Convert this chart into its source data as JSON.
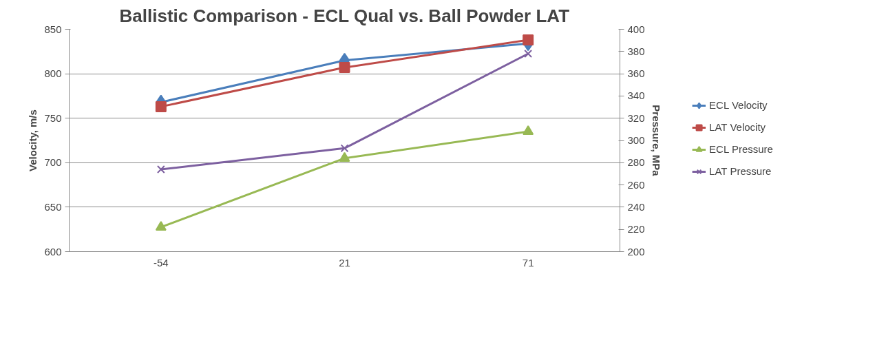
{
  "chart_data": {
    "type": "line",
    "title": "Ballistic Comparison - ECL Qual vs. Ball Powder LAT",
    "categories": [
      "-54",
      "21",
      "71"
    ],
    "ylabel": "Velocity, m/s",
    "y2label": "Pressure, MPa",
    "ylim": [
      600,
      850
    ],
    "yticks": [
      600,
      650,
      700,
      750,
      800,
      850
    ],
    "y2lim": [
      200,
      400
    ],
    "y2ticks": [
      200,
      220,
      240,
      260,
      280,
      300,
      320,
      340,
      360,
      380,
      400
    ],
    "grid": "y",
    "legend": "right",
    "series": [
      {
        "name": "ECL Velocity",
        "color": "#4a7ebb",
        "marker": "diamond",
        "values": [
          768,
          815,
          834
        ]
      },
      {
        "name": "LAT Velocity",
        "color": "#be4b48",
        "marker": "square",
        "values": [
          763,
          807,
          838
        ]
      },
      {
        "name": "ECL Pressure",
        "color": "#98b954",
        "marker": "triangle",
        "axis": "y2",
        "values": [
          222,
          284,
          308
        ]
      },
      {
        "name": "LAT Pressure",
        "color": "#7d60a0",
        "marker": "cross",
        "axis": "y2",
        "values": [
          274,
          293,
          378
        ]
      }
    ]
  }
}
